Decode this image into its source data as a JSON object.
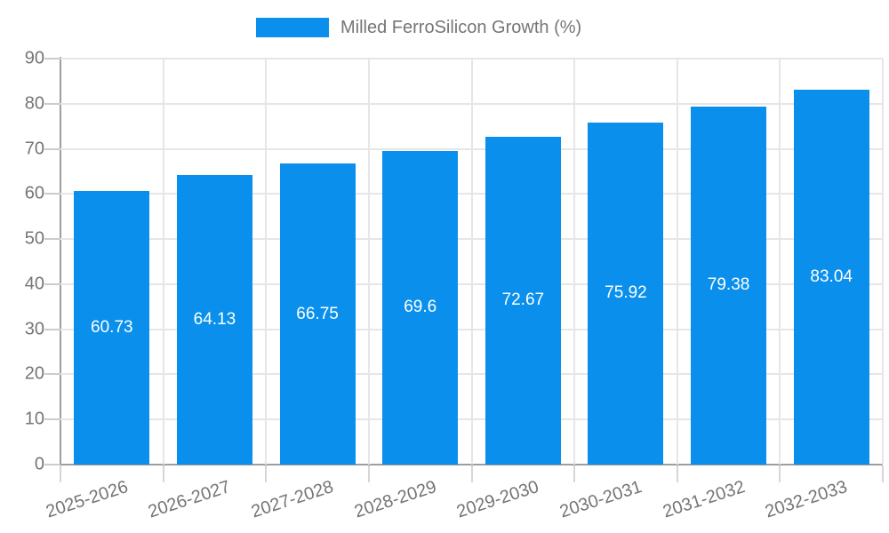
{
  "legend": {
    "label": "Milled FerroSilicon Growth (%)"
  },
  "colors": {
    "bar": "#0a90ec",
    "grid": "#e6e6e6",
    "axis": "#9e9e9e",
    "tick": "#cccccc",
    "text": "#757575",
    "value_label": "#ffffff",
    "background": "#ffffff"
  },
  "chart_data": {
    "type": "bar",
    "title": "Milled FerroSilicon Growth (%)",
    "categories": [
      "2025-2026",
      "2026-2027",
      "2027-2028",
      "2028-2029",
      "2029-2030",
      "2030-2031",
      "2031-2032",
      "2032-2033"
    ],
    "values": [
      60.73,
      64.13,
      66.75,
      69.6,
      72.67,
      75.92,
      79.38,
      83.04
    ],
    "bar_labels": [
      "60.73",
      "64.13",
      "66.75",
      "69.6",
      "72.67",
      "75.92",
      "79.38",
      "83.04"
    ],
    "series": [
      {
        "name": "Milled FerroSilicon Growth (%)",
        "values": [
          60.73,
          64.13,
          66.75,
          69.6,
          72.67,
          75.92,
          79.38,
          83.04
        ]
      }
    ],
    "xlabel": "",
    "ylabel": "",
    "ylim": [
      0,
      90
    ],
    "yticks": [
      0,
      10,
      20,
      30,
      40,
      50,
      60,
      70,
      80,
      90
    ],
    "grid": true,
    "grid_vertical": true,
    "legend_position": "top",
    "value_labels_position": "inside-center",
    "x_label_rotation_deg": -18
  }
}
